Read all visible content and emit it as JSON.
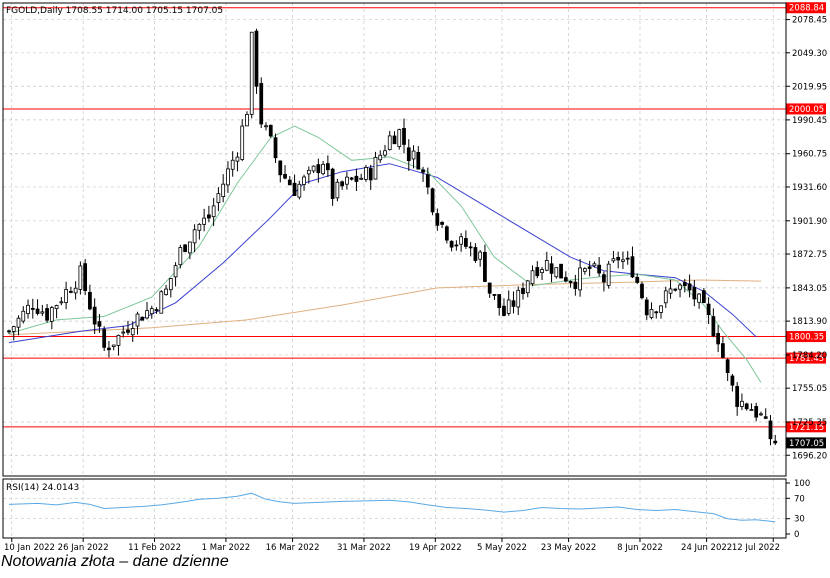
{
  "header": {
    "symbol_line": "FGOLD,Daily  1708.55 1714.00 1705.15 1707.05"
  },
  "caption": "Notowania złota – dane dzienne",
  "colors": {
    "level_line": "#ff0000",
    "sma_short": "#7fc79a",
    "sma_medium": "#3a3fd0",
    "sma_long": "#e0b080",
    "rsi_line": "#5aa9e6",
    "grid": "#c8c8c8"
  },
  "chart_data": [
    {
      "type": "candlestick",
      "title": "",
      "y_ticks": [
        "2078.45",
        "2049.30",
        "2019.95",
        "1990.45",
        "1960.75",
        "1931.60",
        "1901.90",
        "1872.75",
        "1843.05",
        "1813.90",
        "1784.20",
        "1755.05",
        "1725.35",
        "1696.20"
      ],
      "x_ticks": [
        "10 Jan 2022",
        "26 Jan 2022",
        "11 Feb 2022",
        "1 Mar 2022",
        "16 Mar 2022",
        "31 Mar 2022",
        "19 Apr 2022",
        "5 May 2022",
        "23 May 2022",
        "8 Jun 2022",
        "24 Jun 2022",
        "12 Jul 2022"
      ],
      "ylim": [
        1678,
        2093
      ],
      "levels": [
        {
          "label": "2088.84",
          "value": 2088.84
        },
        {
          "label": "2000.05",
          "value": 2000.05
        },
        {
          "label": "1800.35",
          "value": 1800.35
        },
        {
          "label": "1781.45",
          "value": 1781.45
        },
        {
          "label": "1721.15",
          "value": 1721.15
        }
      ],
      "current_price_label": "1707.05",
      "current_price": 1707.05,
      "close_path": [
        [
          0,
          1805
        ],
        [
          5,
          1830
        ],
        [
          8,
          1820
        ],
        [
          12,
          1840
        ],
        [
          15,
          1855
        ],
        [
          18,
          1815
        ],
        [
          20,
          1790
        ],
        [
          23,
          1800
        ],
        [
          26,
          1815
        ],
        [
          30,
          1825
        ],
        [
          33,
          1840
        ],
        [
          36,
          1875
        ],
        [
          39,
          1895
        ],
        [
          42,
          1905
        ],
        [
          45,
          1935
        ],
        [
          48,
          1965
        ],
        [
          50,
          2000
        ],
        [
          51,
          2060
        ],
        [
          53,
          1990
        ],
        [
          55,
          1970
        ],
        [
          57,
          1945
        ],
        [
          60,
          1930
        ],
        [
          63,
          1940
        ],
        [
          66,
          1955
        ],
        [
          68,
          1925
        ],
        [
          71,
          1935
        ],
        [
          74,
          1940
        ],
        [
          76,
          1945
        ],
        [
          78,
          1960
        ],
        [
          80,
          1975
        ],
        [
          82,
          1980
        ],
        [
          84,
          1960
        ],
        [
          86,
          1955
        ],
        [
          88,
          1930
        ],
        [
          90,
          1905
        ],
        [
          93,
          1885
        ],
        [
          96,
          1880
        ],
        [
          99,
          1870
        ],
        [
          101,
          1840
        ],
        [
          104,
          1820
        ],
        [
          107,
          1835
        ],
        [
          110,
          1860
        ],
        [
          113,
          1865
        ],
        [
          116,
          1855
        ],
        [
          119,
          1850
        ],
        [
          122,
          1860
        ],
        [
          125,
          1850
        ],
        [
          128,
          1870
        ],
        [
          131,
          1860
        ],
        [
          134,
          1825
        ],
        [
          137,
          1830
        ],
        [
          140,
          1845
        ],
        [
          143,
          1840
        ],
        [
          145,
          1830
        ],
        [
          147,
          1815
        ],
        [
          149,
          1800
        ],
        [
          151,
          1765
        ],
        [
          153,
          1745
        ],
        [
          156,
          1738
        ],
        [
          158,
          1730
        ],
        [
          160,
          1712
        ],
        [
          161,
          1707.05
        ]
      ],
      "sma_short": [
        [
          0,
          1803
        ],
        [
          10,
          1815
        ],
        [
          20,
          1818
        ],
        [
          30,
          1835
        ],
        [
          40,
          1880
        ],
        [
          48,
          1935
        ],
        [
          55,
          1975
        ],
        [
          60,
          1985
        ],
        [
          65,
          1975
        ],
        [
          72,
          1955
        ],
        [
          80,
          1958
        ],
        [
          88,
          1945
        ],
        [
          95,
          1915
        ],
        [
          102,
          1870
        ],
        [
          110,
          1845
        ],
        [
          118,
          1850
        ],
        [
          125,
          1853
        ],
        [
          132,
          1855
        ],
        [
          140,
          1850
        ],
        [
          146,
          1828
        ],
        [
          150,
          1805
        ],
        [
          155,
          1780
        ],
        [
          158,
          1760
        ]
      ],
      "sma_medium": [
        [
          0,
          1795
        ],
        [
          15,
          1805
        ],
        [
          25,
          1810
        ],
        [
          35,
          1830
        ],
        [
          45,
          1865
        ],
        [
          55,
          1905
        ],
        [
          62,
          1935
        ],
        [
          70,
          1945
        ],
        [
          80,
          1952
        ],
        [
          90,
          1940
        ],
        [
          100,
          1915
        ],
        [
          110,
          1890
        ],
        [
          118,
          1870
        ],
        [
          125,
          1858
        ],
        [
          132,
          1855
        ],
        [
          140,
          1852
        ],
        [
          146,
          1840
        ],
        [
          152,
          1820
        ],
        [
          157,
          1800
        ]
      ],
      "sma_long": [
        [
          0,
          1802
        ],
        [
          30,
          1808
        ],
        [
          50,
          1815
        ],
        [
          70,
          1828
        ],
        [
          90,
          1843
        ],
        [
          110,
          1846
        ],
        [
          130,
          1848
        ],
        [
          145,
          1850
        ],
        [
          158,
          1849
        ]
      ]
    },
    {
      "type": "line",
      "title": "",
      "series_label": "RSI(14) 24.0143",
      "y_ticks": [
        "100",
        "70",
        "30",
        "0"
      ],
      "ylim": [
        0,
        100
      ],
      "values": [
        [
          0,
          58
        ],
        [
          6,
          60
        ],
        [
          10,
          57
        ],
        [
          14,
          62
        ],
        [
          17,
          58
        ],
        [
          20,
          50
        ],
        [
          24,
          52
        ],
        [
          28,
          54
        ],
        [
          32,
          57
        ],
        [
          36,
          62
        ],
        [
          40,
          68
        ],
        [
          44,
          70
        ],
        [
          48,
          74
        ],
        [
          51,
          80
        ],
        [
          54,
          68
        ],
        [
          57,
          63
        ],
        [
          60,
          60
        ],
        [
          65,
          62
        ],
        [
          70,
          64
        ],
        [
          75,
          65
        ],
        [
          80,
          66
        ],
        [
          84,
          63
        ],
        [
          88,
          57
        ],
        [
          92,
          52
        ],
        [
          96,
          50
        ],
        [
          100,
          47
        ],
        [
          104,
          43
        ],
        [
          108,
          46
        ],
        [
          112,
          52
        ],
        [
          116,
          50
        ],
        [
          120,
          49
        ],
        [
          124,
          51
        ],
        [
          128,
          53
        ],
        [
          132,
          48
        ],
        [
          136,
          46
        ],
        [
          140,
          48
        ],
        [
          144,
          44
        ],
        [
          148,
          40
        ],
        [
          151,
          30
        ],
        [
          154,
          27
        ],
        [
          157,
          28
        ],
        [
          160,
          25
        ],
        [
          161,
          24
        ]
      ]
    }
  ]
}
